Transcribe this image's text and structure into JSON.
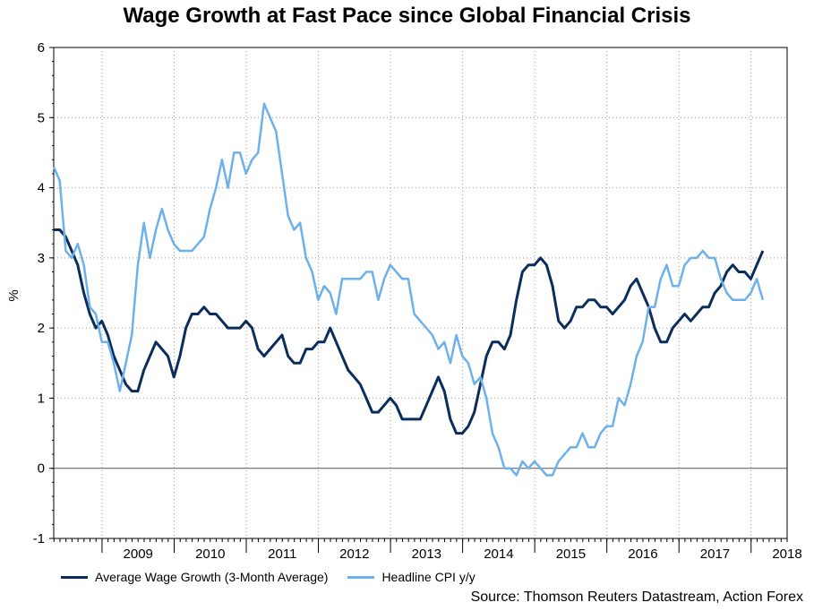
{
  "chart_data": {
    "type": "line",
    "title": "Wage Growth at Fast Pace since Global Financial Crisis",
    "ylabel": "%",
    "xlabel": "",
    "ylim": [
      -1,
      6
    ],
    "yticks": [
      -1,
      0,
      1,
      2,
      3,
      4,
      5,
      6
    ],
    "x_range": [
      2008.33,
      2018.5
    ],
    "years": [
      "2009",
      "2010",
      "2011",
      "2012",
      "2013",
      "2014",
      "2015",
      "2016",
      "2017",
      "2018"
    ],
    "grid": true,
    "legend_position": "bottom-left",
    "colors": {
      "wage": "#0b2d5b",
      "cpi": "#6eb1ea"
    },
    "series": [
      {
        "name": "Average Wage Growth (3-Month Average)",
        "key": "wage",
        "start": 2008.33,
        "step": 0.08333,
        "values": [
          3.4,
          3.4,
          3.3,
          3.1,
          2.9,
          2.5,
          2.2,
          2.0,
          2.1,
          1.9,
          1.6,
          1.4,
          1.2,
          1.1,
          1.1,
          1.4,
          1.6,
          1.8,
          1.7,
          1.6,
          1.3,
          1.6,
          2.0,
          2.2,
          2.2,
          2.3,
          2.2,
          2.2,
          2.1,
          2.0,
          2.0,
          2.0,
          2.1,
          2.0,
          1.7,
          1.6,
          1.7,
          1.8,
          1.9,
          1.6,
          1.5,
          1.5,
          1.7,
          1.7,
          1.8,
          1.8,
          2.0,
          1.8,
          1.6,
          1.4,
          1.3,
          1.2,
          1.0,
          0.8,
          0.8,
          0.9,
          1.0,
          0.9,
          0.7,
          0.7,
          0.7,
          0.7,
          0.9,
          1.1,
          1.3,
          1.1,
          0.7,
          0.5,
          0.5,
          0.6,
          0.8,
          1.2,
          1.6,
          1.8,
          1.8,
          1.7,
          1.9,
          2.4,
          2.8,
          2.9,
          2.9,
          3.0,
          2.9,
          2.6,
          2.1,
          2.0,
          2.1,
          2.3,
          2.3,
          2.4,
          2.4,
          2.3,
          2.3,
          2.2,
          2.3,
          2.4,
          2.6,
          2.7,
          2.5,
          2.3,
          2.0,
          1.8,
          1.8,
          2.0,
          2.1,
          2.2,
          2.1,
          2.2,
          2.3,
          2.3,
          2.5,
          2.6,
          2.8,
          2.9,
          2.8,
          2.8,
          2.7,
          2.9,
          3.1
        ]
      },
      {
        "name": "Headline CPI y/y",
        "key": "cpi",
        "start": 2008.33,
        "step": 0.08333,
        "values": [
          4.3,
          4.1,
          3.1,
          3.0,
          3.2,
          2.9,
          2.3,
          2.2,
          1.8,
          1.8,
          1.5,
          1.1,
          1.5,
          1.9,
          2.9,
          3.5,
          3.0,
          3.4,
          3.7,
          3.4,
          3.2,
          3.1,
          3.1,
          3.1,
          3.2,
          3.3,
          3.7,
          4.0,
          4.4,
          4.0,
          4.5,
          4.5,
          4.2,
          4.4,
          4.5,
          5.2,
          5.0,
          4.8,
          4.2,
          3.6,
          3.4,
          3.5,
          3.0,
          2.8,
          2.4,
          2.6,
          2.5,
          2.2,
          2.7,
          2.7,
          2.7,
          2.7,
          2.8,
          2.8,
          2.4,
          2.7,
          2.9,
          2.8,
          2.7,
          2.7,
          2.2,
          2.1,
          2.0,
          1.9,
          1.7,
          1.8,
          1.5,
          1.9,
          1.6,
          1.5,
          1.2,
          1.3,
          1.0,
          0.5,
          0.3,
          0.0,
          0.0,
          -0.1,
          0.1,
          0.0,
          0.1,
          0.0,
          -0.1,
          -0.1,
          0.1,
          0.2,
          0.3,
          0.3,
          0.5,
          0.3,
          0.3,
          0.5,
          0.6,
          0.6,
          1.0,
          0.9,
          1.2,
          1.6,
          1.8,
          2.3,
          2.3,
          2.7,
          2.9,
          2.6,
          2.6,
          2.9,
          3.0,
          3.0,
          3.1,
          3.0,
          3.0,
          2.7,
          2.5,
          2.4,
          2.4,
          2.4,
          2.5,
          2.7,
          2.4
        ]
      }
    ]
  },
  "source": "Source: Thomson Reuters Datastream, Action Forex"
}
